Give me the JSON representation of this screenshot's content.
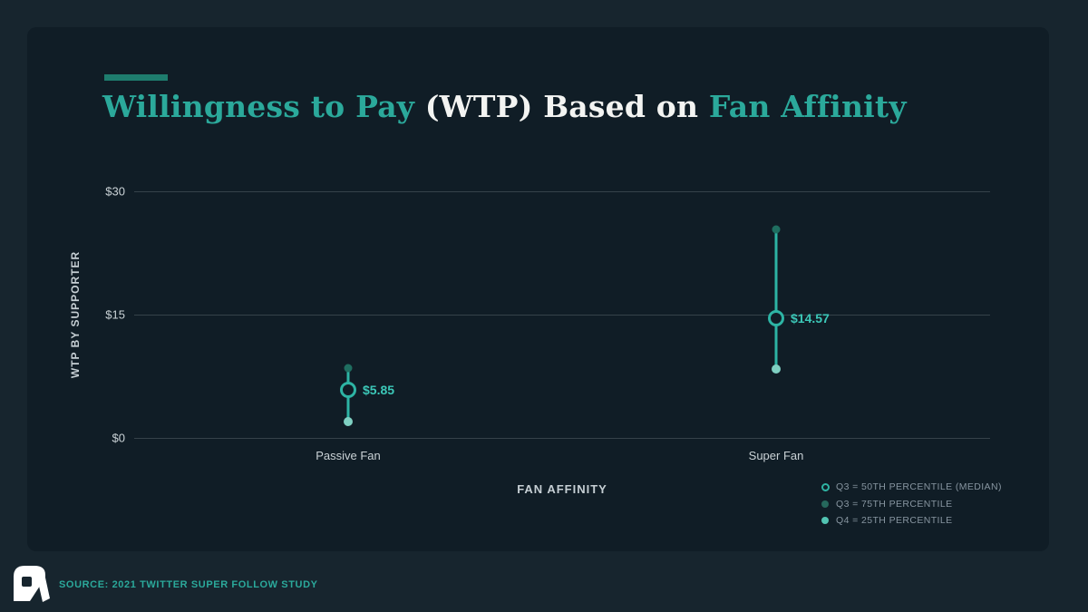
{
  "page": {
    "title_parts": [
      {
        "text": "Willingness to Pay ",
        "style": "accent"
      },
      {
        "text": "(WTP) Based on ",
        "style": "light"
      },
      {
        "text": "Fan Affinity",
        "style": "accent"
      }
    ],
    "source": "SOURCE: 2021 TWITTER SUPER FOLLOW STUDY"
  },
  "colors": {
    "outer_background": "#17252e",
    "panel_background": "#101d26",
    "accent_teal": "#2ba99b",
    "accent_bar": "#1e7d6e",
    "range_line": "#2db4a4",
    "value_label": "#3cc8b8",
    "dot_75th": "#1f6e60",
    "dot_25th": "#7fd0c2",
    "gridline": "#36424a",
    "axis_text": "#cad2d6",
    "legend_text": "#8795a0",
    "title_light": "#f3f4f2",
    "logo": "#ffffff"
  },
  "chart_data": {
    "type": "scatter",
    "subtype": "dot-range",
    "title": "Willingness to Pay (WTP) Based on Fan Affinity",
    "xlabel": "FAN AFFINITY",
    "ylabel": "WTP BY SUPPORTER",
    "categories": [
      "Passive Fan",
      "Super Fan"
    ],
    "series": [
      {
        "name": "Q3 = 50TH PERCENTILE (MEDIAN)",
        "marker": "ring",
        "values": [
          5.85,
          14.57
        ],
        "labels": [
          "$5.85",
          "$14.57"
        ]
      },
      {
        "name": "Q3 = 75TH PERCENTILE",
        "marker": "dot-muted",
        "values": [
          8.5,
          25.4
        ],
        "labels": []
      },
      {
        "name": "Q4 = 25TH PERCENTILE",
        "marker": "dot-bright",
        "values": [
          2.0,
          8.4
        ],
        "labels": []
      }
    ],
    "ylim": [
      0,
      30
    ],
    "yticks": [
      {
        "value": 0,
        "label": "$0"
      },
      {
        "value": 15,
        "label": "$15"
      },
      {
        "value": 30,
        "label": "$30"
      }
    ],
    "grid": true,
    "legend_position": "bottom-right"
  }
}
